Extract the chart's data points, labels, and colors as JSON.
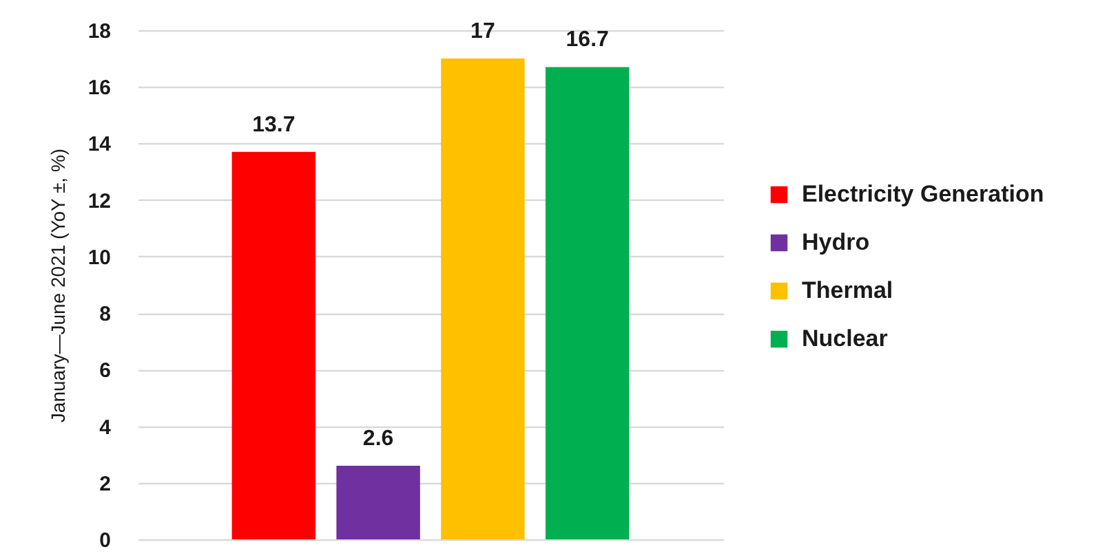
{
  "chart_data": {
    "type": "bar",
    "ylabel": "January—June 2021 (YoY ±, %)",
    "categories": [
      null
    ],
    "series": [
      {
        "name": "Electricity Generation",
        "color": "#ff0000",
        "values": [
          13.7
        ]
      },
      {
        "name": "Hydro",
        "color": "#7030a0",
        "values": [
          2.6
        ]
      },
      {
        "name": "Thermal",
        "color": "#ffc000",
        "values": [
          17
        ]
      },
      {
        "name": "Nuclear",
        "color": "#00b050",
        "values": [
          16.7
        ]
      }
    ],
    "ylim": [
      0,
      18
    ],
    "yticks": [
      0,
      2,
      4,
      6,
      8,
      10,
      12,
      14,
      16,
      18
    ],
    "grid": "y",
    "legend": "right",
    "data_labels": true
  }
}
